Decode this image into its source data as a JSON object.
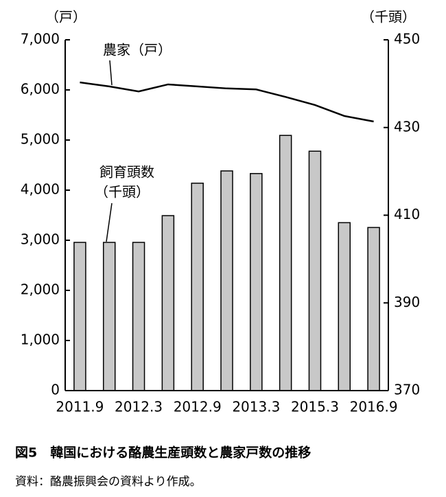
{
  "chart_data": {
    "type": "bar",
    "caption": "図5　韓国における酪農生産頭数と農家戸数の推移",
    "source": "資料：酪農振興会の資料より作成。",
    "y_unit": "（戸）",
    "y2_unit": "（千頭）",
    "annotations": [
      {
        "text": "農家（戸）"
      },
      {
        "lines": [
          "飼育頭数",
          "（千頭）"
        ]
      }
    ],
    "categories": [
      "2011.9",
      null,
      "2012.3",
      null,
      "2012.9",
      null,
      "2013.3",
      null,
      "2015.3",
      null,
      "2016.9"
    ],
    "series": [
      {
        "type": "bar",
        "axis": "y2",
        "color": "#c8c8c8",
        "values": [
          403.8,
          403.8,
          403.8,
          409.9,
          417.3,
          420.1,
          419.5,
          428.2,
          424.6,
          408.3,
          407.2
        ]
      },
      {
        "type": "line",
        "color": "#000000",
        "values": [
          6150,
          6070,
          5970,
          6110,
          6070,
          6030,
          6010,
          5860,
          5700,
          5480,
          5370
        ]
      }
    ],
    "ylim": [
      0,
      7000
    ],
    "yticks": [
      0,
      {
        "value": 1000,
        "label": "1,000"
      },
      {
        "value": 2000,
        "label": "2,000"
      },
      {
        "value": 3000,
        "label": "3,000"
      },
      {
        "value": 4000,
        "label": "4,000"
      },
      {
        "value": 5000,
        "label": "5,000"
      },
      {
        "value": 6000,
        "label": "6,000"
      },
      {
        "value": 7000,
        "label": "7,000"
      }
    ],
    "y2lim": [
      370,
      450
    ],
    "y2ticks": [
      370,
      390,
      410,
      430,
      450
    ]
  }
}
